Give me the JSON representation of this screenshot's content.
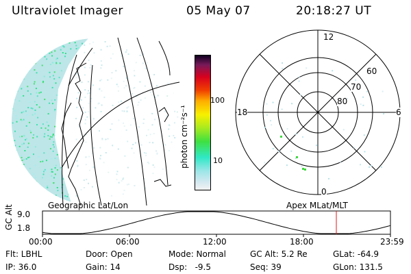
{
  "header": {
    "title": "Ultraviolet Imager",
    "date": "05 May 07",
    "time": "20:18:27 UT"
  },
  "colorbar": {
    "unit_label": "photon cm⁻²s⁻¹",
    "ticks": [
      "100",
      "10"
    ]
  },
  "polar": {
    "mlt_labels": {
      "top": "12",
      "bottom": "0",
      "left": "18",
      "right": "6"
    },
    "lat_labels": [
      "60",
      "70",
      "80"
    ]
  },
  "labels": {
    "left_panel": "Geographic Lat/Lon",
    "right_panel": "Apex MLat/MLT"
  },
  "orbit": {
    "axis_label": "GC Alt",
    "y_ticks": [
      "9.0",
      "1.8"
    ],
    "x_ticks": [
      "00:00",
      "06:00",
      "12:00",
      "18:00",
      "23:59"
    ]
  },
  "info": {
    "flt": "Flt: LBHL",
    "ip": "IP: 36.0",
    "door": "Door: Open",
    "gain": "Gain: 14",
    "mode": "Mode: Normal",
    "dsp": "Dsp:   -9.5",
    "gc_alt": "GC Alt: 5.2 Re",
    "seq": "Seq: 39",
    "glat": "GLat: -64.9",
    "glon": "GLon: 131.5"
  }
}
